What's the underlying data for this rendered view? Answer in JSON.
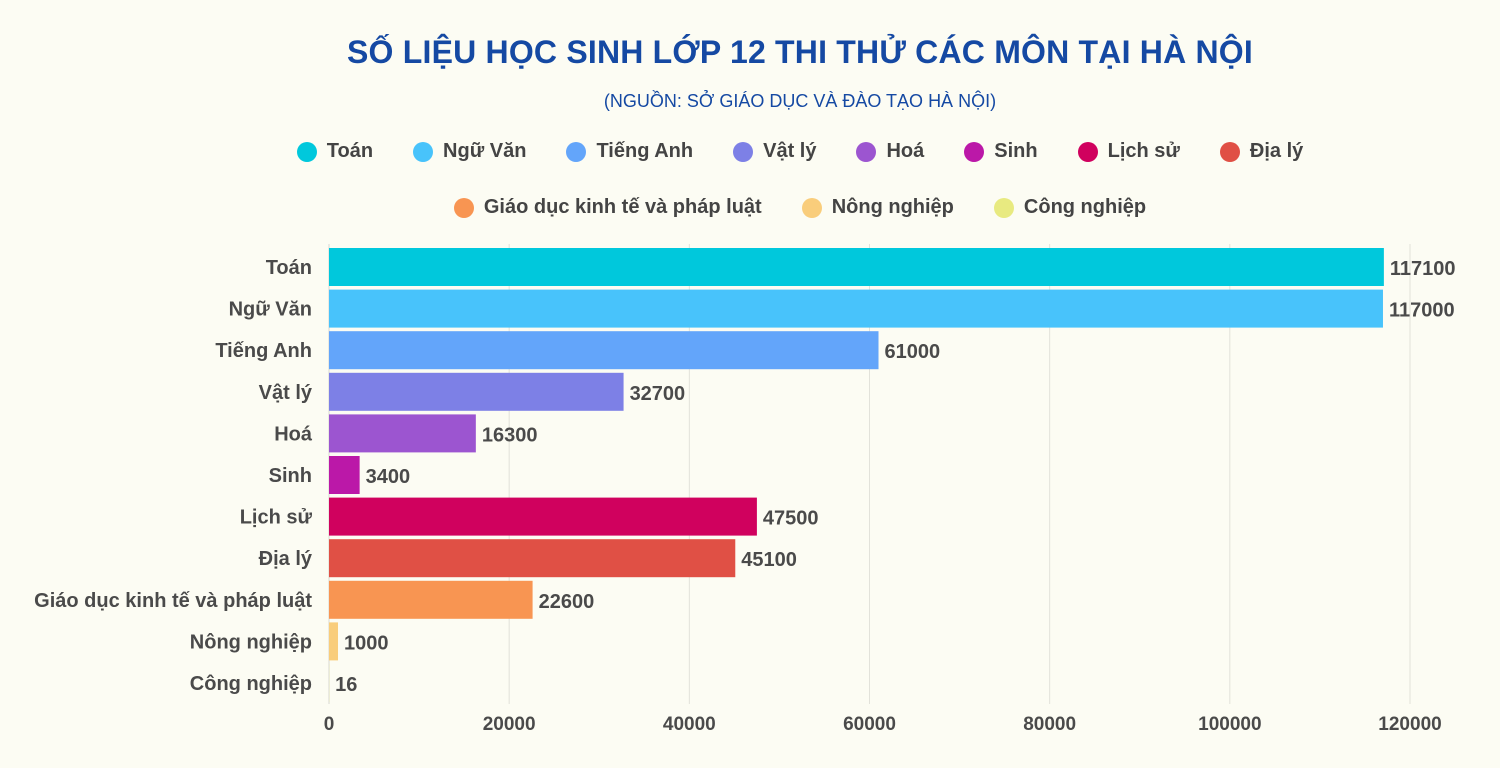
{
  "chart_data": {
    "type": "bar",
    "orientation": "horizontal",
    "title": "SỐ LIỆU HỌC SINH LỚP 12 THI THỬ CÁC MÔN TẠI HÀ NỘI",
    "subtitle": "(NGUỒN: SỞ GIÁO DỤC VÀ ĐÀO TẠO HÀ NỘI)",
    "categories": [
      "Toán",
      "Ngữ Văn",
      "Tiếng Anh",
      "Vật lý",
      "Hoá",
      "Sinh",
      "Lịch sử",
      "Địa lý",
      "Giáo dục kinh tế và pháp luật",
      "Nông nghiệp",
      "Công nghiệp"
    ],
    "values": [
      117100,
      117000,
      61000,
      32700,
      16300,
      3400,
      47500,
      45100,
      22600,
      1000,
      16
    ],
    "value_labels": [
      "117100",
      "117000",
      "61000",
      "32700",
      "16300",
      "3400",
      "47500",
      "45100",
      "22600",
      "1000",
      "16"
    ],
    "colors": [
      "#00c8dc",
      "#48c3fb",
      "#63a5fa",
      "#7d80e6",
      "#9c55d0",
      "#bb18a8",
      "#d0015e",
      "#e05045",
      "#f89552",
      "#f9cd7b",
      "#e8ea80"
    ],
    "xlim": [
      0,
      120000
    ],
    "xticks": [
      "0",
      "20000",
      "40000",
      "60000",
      "80000",
      "100000",
      "120000"
    ],
    "xtick_values": [
      0,
      20000,
      40000,
      60000,
      80000,
      100000,
      120000
    ],
    "grid": true,
    "legend_position": "top",
    "xlabel": "",
    "ylabel": ""
  }
}
